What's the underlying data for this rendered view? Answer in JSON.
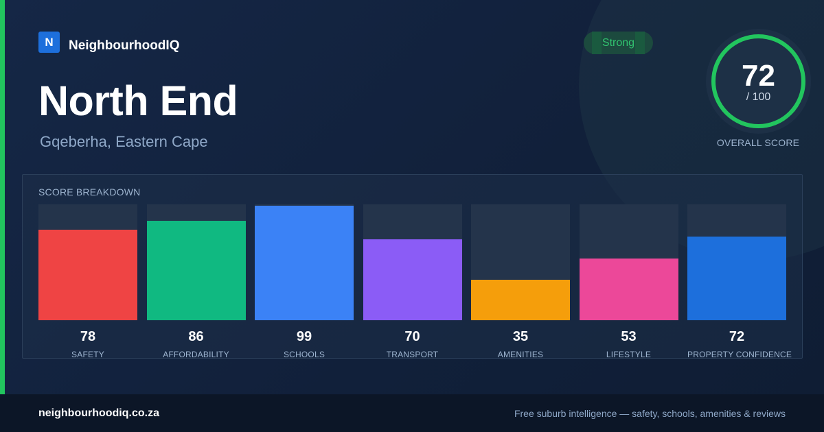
{
  "brand": {
    "logo_letter": "N",
    "name": "NeighbourhoodIQ"
  },
  "suburb": {
    "name": "North End",
    "location": "Gqeberha, Eastern Cape"
  },
  "strength_badge": "Strong",
  "overall": {
    "score": "72",
    "max": "/ 100",
    "label": "OVERALL SCORE"
  },
  "breakdown": {
    "title": "SCORE BREAKDOWN",
    "items": [
      {
        "label": "SAFETY",
        "value": 78,
        "color": "#ef4444"
      },
      {
        "label": "AFFORDABILITY",
        "value": 86,
        "color": "#10b981"
      },
      {
        "label": "SCHOOLS",
        "value": 99,
        "color": "#3b82f6"
      },
      {
        "label": "TRANSPORT",
        "value": 70,
        "color": "#8b5cf6"
      },
      {
        "label": "AMENITIES",
        "value": 35,
        "color": "#f59e0b"
      },
      {
        "label": "LIFESTYLE",
        "value": 53,
        "color": "#ec4899"
      },
      {
        "label": "PROPERTY CONFIDENCE",
        "value": 72,
        "color": "#1d6fdc"
      }
    ]
  },
  "footer": {
    "url": "neighbourhoodiq.co.za",
    "tagline": "Free suburb intelligence — safety, schools, amenities & reviews"
  },
  "colors": {
    "accent": "#22c55e",
    "background": "#13213a",
    "footer": "#0c1627"
  }
}
